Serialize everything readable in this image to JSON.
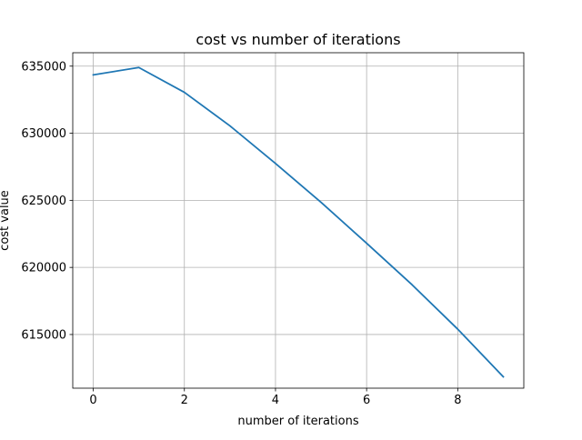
{
  "chart_data": {
    "type": "line",
    "title": "cost vs number of iterations",
    "xlabel": "number of iterations",
    "ylabel": "cost value",
    "xlim": [
      -0.45,
      9.45
    ],
    "ylim": [
      611000,
      636000
    ],
    "xticks": [
      0,
      2,
      4,
      6,
      8
    ],
    "xtick_labels": [
      "0",
      "2",
      "4",
      "6",
      "8"
    ],
    "yticks": [
      615000,
      620000,
      625000,
      630000,
      635000
    ],
    "ytick_labels": [
      "615000",
      "620000",
      "625000",
      "630000",
      "635000"
    ],
    "grid": true,
    "series": [
      {
        "color": "#1f77b4",
        "x": [
          0,
          1,
          2,
          3,
          4,
          5,
          6,
          7,
          8,
          9
        ],
        "y": [
          634350,
          634900,
          633050,
          630550,
          627750,
          624850,
          621800,
          618700,
          615400,
          611850
        ]
      }
    ]
  }
}
